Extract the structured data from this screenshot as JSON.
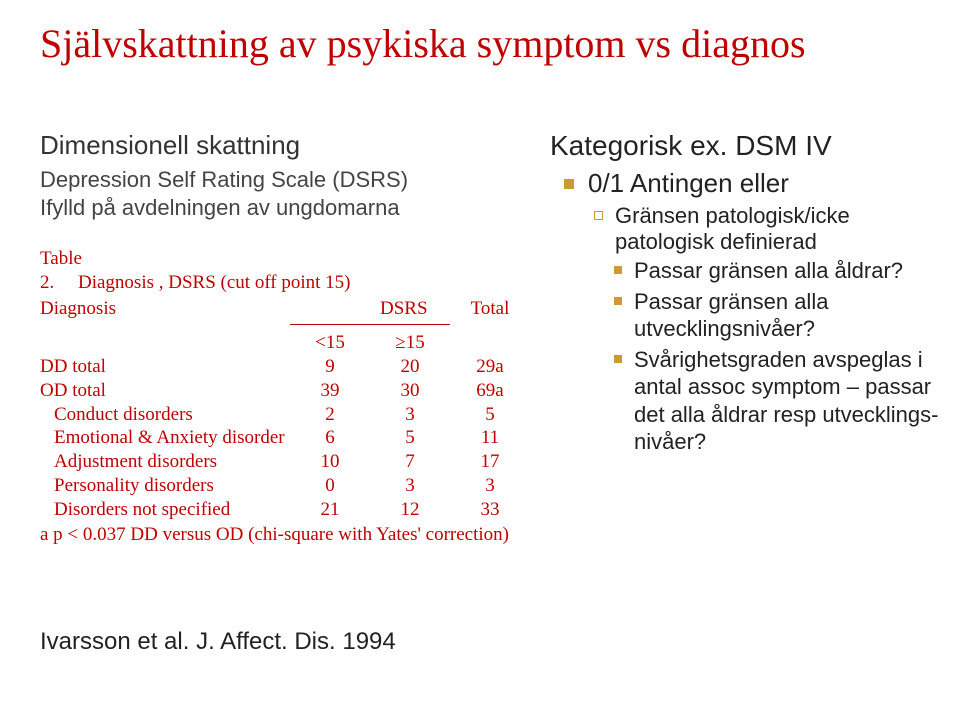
{
  "title": "Självskattning av psykiska symptom vs diagnos",
  "left": {
    "sub1": "Dimensionell skattning",
    "sub2": "Depression Self Rating Scale (DSRS)",
    "sub3": "Ifylld på avdelningen av ungdomarna",
    "table": {
      "caption_left": "Table 2.",
      "caption_right": "Diagnosis , DSRS (cut off point 15)",
      "hdr_diag": "Diagnosis",
      "hdr_dsrs": "DSRS",
      "hdr_total": "Total",
      "sub_lt": "<15",
      "sub_ge": "≥15",
      "rows": [
        {
          "label": "DD total",
          "indent": false,
          "c1": "9",
          "c2": "20",
          "c3": "29a"
        },
        {
          "label": "OD total",
          "indent": false,
          "c1": "39",
          "c2": "30",
          "c3": "69a"
        },
        {
          "label": "Conduct disorders",
          "indent": true,
          "c1": "2",
          "c2": "3",
          "c3": "5"
        },
        {
          "label": "Emotional & Anxiety disorder",
          "indent": true,
          "c1": "6",
          "c2": "5",
          "c3": "11"
        },
        {
          "label": "Adjustment disorders",
          "indent": true,
          "c1": "10",
          "c2": "7",
          "c3": "17"
        },
        {
          "label": "Personality disorders",
          "indent": true,
          "c1": "0",
          "c2": "3",
          "c3": "3"
        },
        {
          "label": "Disorders not specified",
          "indent": true,
          "c1": "21",
          "c2": "12",
          "c3": "33"
        }
      ],
      "footnote": "a  p < 0.037 DD versus OD (chi-square with Yates' correction)"
    },
    "citation": "Ivarsson et al. J. Affect. Dis. 1994"
  },
  "right": {
    "head": "Kategorisk ex. DSM IV",
    "b1": "0/1 Antingen eller",
    "b2": "Gränsen patologisk/icke patologisk definierad",
    "b3a": "Passar gränsen alla åldrar?",
    "b3b": "Passar gränsen alla utvecklingsnivåer?",
    "b3c": "Svårighetsgraden avspeglas i antal assoc symptom – passar det alla åldrar resp utvecklings-nivåer?"
  },
  "colors": {
    "title": "#c00000",
    "table_text": "#c00000",
    "body_text": "#222222",
    "bullet": "#cc9933",
    "background": "#ffffff"
  }
}
